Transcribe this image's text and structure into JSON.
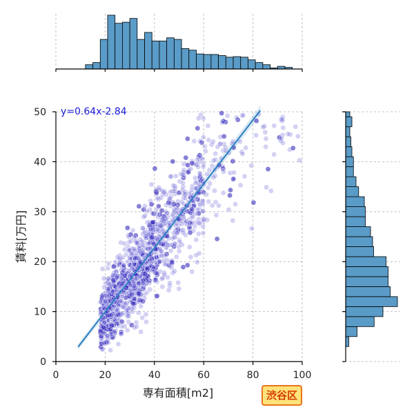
{
  "chart_data": {
    "type": "scatter",
    "xlabel": "専有面積[m2]",
    "ylabel": "賃料[万円]",
    "xlim": [
      0,
      100
    ],
    "ylim": [
      0,
      50
    ],
    "xticks": [
      "0",
      "20",
      "40",
      "60",
      "80",
      "100"
    ],
    "yticks": [
      "0",
      "10",
      "20",
      "30",
      "40",
      "50"
    ],
    "grid": true,
    "annotation": "y=0.64x-2.84",
    "badge": "渋谷区",
    "regression": {
      "slope": 0.64,
      "intercept": -2.84,
      "x_range": [
        9,
        83
      ]
    },
    "scatter_summary": {
      "x_range": [
        8,
        100
      ],
      "y_range": [
        2,
        50
      ]
    },
    "top_histogram": {
      "bin_edges": [
        0,
        3,
        6,
        9,
        12,
        15,
        18,
        21,
        24,
        27,
        30,
        33,
        36,
        39,
        42,
        45,
        48,
        51,
        54,
        57,
        60,
        63,
        66,
        69,
        72,
        75,
        78,
        81,
        84,
        87,
        90,
        93,
        96,
        99
      ],
      "counts": [
        0,
        0,
        0,
        0.0,
        0.08,
        0.12,
        0.55,
        1.0,
        0.85,
        0.87,
        0.94,
        0.55,
        0.68,
        0.52,
        0.52,
        0.58,
        0.55,
        0.38,
        0.35,
        0.28,
        0.27,
        0.27,
        0.25,
        0.22,
        0.23,
        0.22,
        0.17,
        0.12,
        0.08,
        0.02,
        0.05,
        0.03,
        0.0
      ]
    },
    "right_histogram": {
      "bin_edges": [
        3,
        5,
        7,
        9,
        11,
        13,
        15,
        17,
        19,
        21,
        23,
        25,
        27,
        29,
        31,
        33,
        35,
        37,
        39,
        41,
        43,
        45,
        47,
        49,
        50
      ],
      "counts": [
        0.06,
        0.22,
        0.55,
        0.72,
        1.0,
        0.86,
        0.82,
        0.82,
        0.78,
        0.54,
        0.52,
        0.48,
        0.38,
        0.38,
        0.36,
        0.25,
        0.2,
        0.15,
        0.15,
        0.12,
        0.1,
        0.08,
        0.12,
        0.08
      ]
    }
  }
}
